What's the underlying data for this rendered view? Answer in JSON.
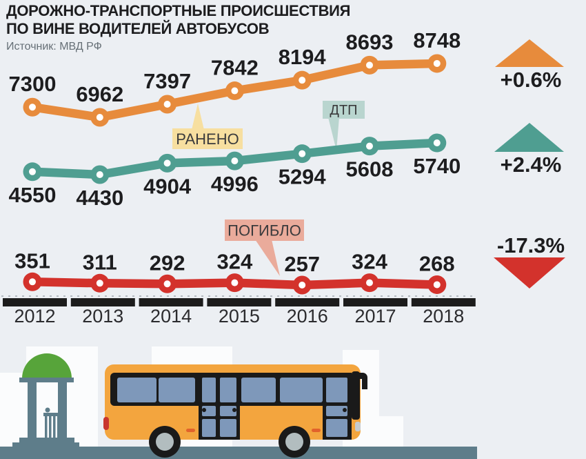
{
  "header": {
    "title": "ДОРОЖНО-ТРАНСПОРТНЫЕ ПРОИСШЕСТВИЯ\nПО ВИНЕ ВОДИТЕЛЕЙ АВТОБУСОВ",
    "source": "Источник: МВД РФ"
  },
  "chart_data": {
    "type": "line",
    "categories": [
      "2012",
      "2013",
      "2014",
      "2015",
      "2016",
      "2017",
      "2018"
    ],
    "series": [
      {
        "id": "injured",
        "name": "РАНЕНО",
        "values": [
          7300,
          6962,
          7397,
          7842,
          8194,
          8693,
          8748
        ],
        "color": "#E78B3C",
        "callout_bg": "#F7DFA0",
        "change": "+0.6%",
        "trend": "up"
      },
      {
        "id": "accidents",
        "name": "ДТП",
        "values": [
          4550,
          4430,
          4904,
          4996,
          5294,
          5608,
          5740
        ],
        "color": "#4F9E91",
        "callout_bg": "#B9D5CF",
        "change": "+2.4%",
        "trend": "up"
      },
      {
        "id": "deaths",
        "name": "ПОГИБЛО",
        "values": [
          351,
          311,
          292,
          324,
          257,
          324,
          268
        ],
        "color": "#D3322C",
        "callout_bg": "#EAAB9B",
        "change": "-17.3%",
        "trend": "down"
      }
    ],
    "xlabel": "",
    "ylabel": "",
    "grid": false,
    "legend_position": "inline-callouts",
    "x_axis_style": "black-segment-bars"
  },
  "colors": {
    "bg": "#ECEFF3",
    "text": "#1d1d1f",
    "axis_bar": "#1c1c1c",
    "dash_line": "#b3bac0",
    "road": "#5E7D8A",
    "dome": "#57A43A",
    "bus": "#F3A53E",
    "window": "#7E98BA",
    "hub": "#B2BDBF",
    "building": "#FBFCFD",
    "dark": "#1A1A1A",
    "tail_light": "#C8352E",
    "marker_light": "#E2622B",
    "head_light": "#C6CBCE"
  }
}
